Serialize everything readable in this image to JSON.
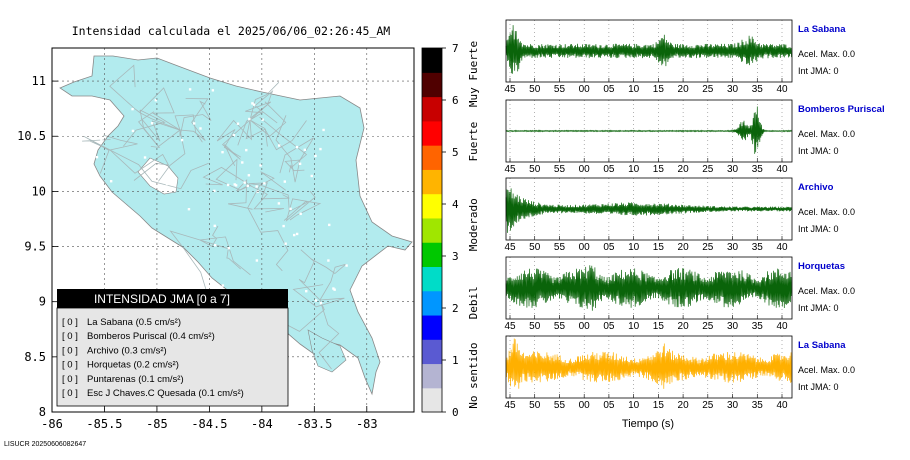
{
  "map": {
    "title": "Intensidad calculada el 2025/06/06_02:26:45_AM",
    "x_ticks": [
      "-86",
      "-85.5",
      "-85",
      "-84.5",
      "-84",
      "-83.5",
      "-83"
    ],
    "y_ticks": [
      "11",
      "10.5",
      "10",
      "9.5",
      "9",
      "8.5",
      "8"
    ],
    "xlim": [
      -86.0,
      -82.55
    ],
    "ylim": [
      8.0,
      11.3
    ],
    "land_color": "#b2ebee",
    "legend_title": "INTENSIDAD JMA [0 a 7]",
    "stations": [
      {
        "bracket": "[ 0 ]",
        "name": "La Sabana (0.5 cm/s²)"
      },
      {
        "bracket": "[ 0 ]",
        "name": "Bomberos Puriscal (0.4 cm/s²)"
      },
      {
        "bracket": "[ 0 ]",
        "name": "Archivo (0.3 cm/s²)"
      },
      {
        "bracket": "[ 0 ]",
        "name": "Horquetas (0.2 cm/s²)"
      },
      {
        "bracket": "[ 0 ]",
        "name": "Puntarenas (0.1 cm/s²)"
      },
      {
        "bracket": "[ 0 ]",
        "name": "Esc J Chaves.C Quesada (0.1 cm/s²)"
      }
    ],
    "footer": "LISUCR 20250606082647"
  },
  "colorbar": {
    "ticks": [
      "7",
      "6",
      "5",
      "4",
      "3",
      "2",
      "1",
      "0"
    ],
    "range": [
      0,
      7
    ],
    "categories": [
      "Muy Fuerte",
      "Fuerte",
      "Moderado",
      "Debil",
      "No sentido"
    ],
    "colors": [
      "#e6e6e6",
      "#b4b4d2",
      "#5a5ad2",
      "#0000ff",
      "#0096ff",
      "#00dcc8",
      "#00c800",
      "#a0e600",
      "#ffff00",
      "#ffb400",
      "#ff6400",
      "#ff0000",
      "#c80000",
      "#500000",
      "#000000"
    ]
  },
  "chart_data": {
    "type": "line",
    "x_ticks": [
      "45",
      "50",
      "55",
      "00",
      "05",
      "10",
      "15",
      "20",
      "25",
      "30",
      "35",
      "40"
    ],
    "xlabel": "Tiempo (s)",
    "series": [
      {
        "name": "La Sabana",
        "acel": "Acel. Max. 0.0",
        "int": "Int JMA: 0",
        "color": "#0a640a"
      },
      {
        "name": "Bomberos Puriscal",
        "acel": "Acel. Max. 0.0",
        "int": "Int JMA: 0",
        "color": "#0a640a"
      },
      {
        "name": "Archivo",
        "acel": "Acel. Max. 0.0",
        "int": "Int JMA: 0",
        "color": "#0a640a"
      },
      {
        "name": "Horquetas",
        "acel": "Acel. Max. 0.0",
        "int": "Int JMA: 0",
        "color": "#0a640a"
      },
      {
        "name": "La Sabana",
        "acel": "Acel. Max. 0.0",
        "int": "Int JMA: 0",
        "color": "#ffb000"
      }
    ]
  }
}
